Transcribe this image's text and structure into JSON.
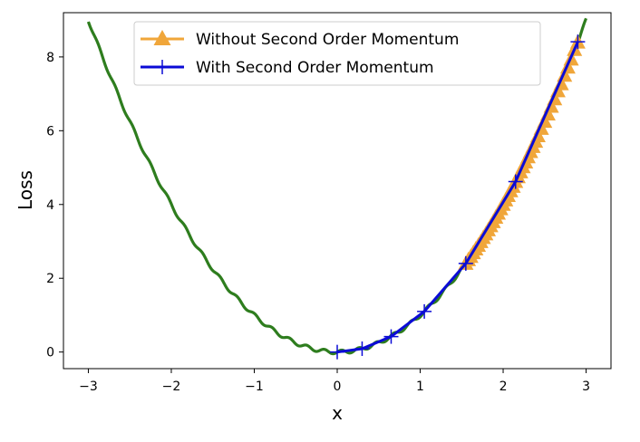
{
  "chart_data": {
    "type": "line",
    "title": "",
    "xlabel": "x",
    "ylabel": "Loss",
    "xlim": [
      -3.3,
      3.3
    ],
    "ylim": [
      -0.45,
      9.2
    ],
    "x_ticks": [
      -3,
      -2,
      -1,
      0,
      1,
      2,
      3
    ],
    "x_tick_labels": [
      "−3",
      "−2",
      "−1",
      "0",
      "1",
      "2",
      "3"
    ],
    "y_ticks": [
      0,
      2,
      4,
      6,
      8
    ],
    "y_tick_labels": [
      "0",
      "2",
      "4",
      "6",
      "8"
    ],
    "grid": false,
    "legend_position": "top-center",
    "loss_curve": {
      "function": "x^2 + 0.05*sin(30x)",
      "x_range": [
        -3,
        3
      ],
      "color": "#2e7d1e"
    },
    "series": [
      {
        "name": "Without Second Order Momentum",
        "marker": "triangle",
        "color": "#f0a63a",
        "x": [
          2.9,
          2.86,
          2.82,
          2.78,
          2.74,
          2.7,
          2.66,
          2.62,
          2.58,
          2.54,
          2.5,
          2.46,
          2.42,
          2.39,
          2.36,
          2.33,
          2.3,
          2.27,
          2.24,
          2.21,
          2.18,
          2.15,
          2.12,
          2.09,
          2.06,
          2.03,
          2.0,
          1.97,
          1.94,
          1.91,
          1.88,
          1.85,
          1.82,
          1.79,
          1.76,
          1.73,
          1.7,
          1.67,
          1.64,
          1.61,
          1.58,
          1.55
        ],
        "y": [
          8.4,
          8.2,
          7.94,
          7.72,
          7.5,
          7.27,
          7.08,
          6.86,
          6.66,
          6.45,
          6.25,
          6.06,
          5.86,
          5.71,
          5.57,
          5.43,
          5.29,
          5.15,
          5.02,
          4.88,
          4.75,
          4.62,
          4.49,
          4.37,
          4.24,
          4.12,
          4.0,
          3.88,
          3.76,
          3.65,
          3.53,
          3.42,
          3.31,
          3.2,
          3.1,
          2.99,
          2.89,
          2.79,
          2.69,
          2.59,
          2.5,
          2.4
        ]
      },
      {
        "name": "With Second Order Momentum",
        "marker": "plus",
        "color": "#0b0bd6",
        "x": [
          2.9,
          2.15,
          1.55,
          1.05,
          0.65,
          0.3,
          0.0
        ],
        "y": [
          8.41,
          4.62,
          2.4,
          1.1,
          0.42,
          0.09,
          0.0
        ]
      }
    ]
  }
}
